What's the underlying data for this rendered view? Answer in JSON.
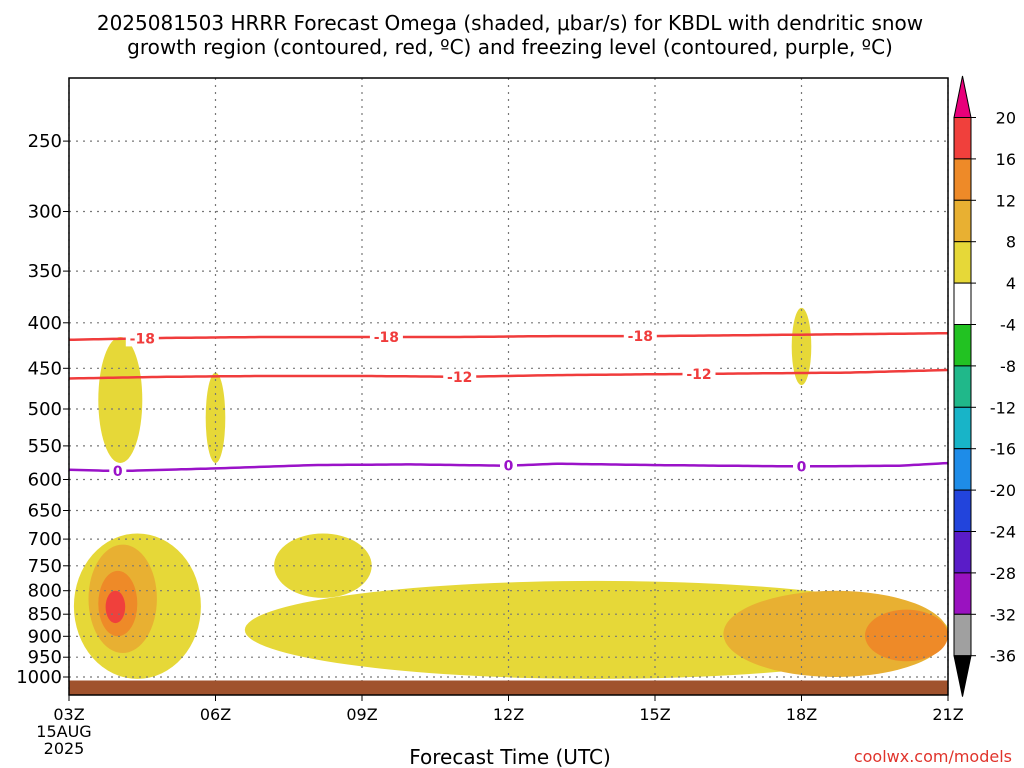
{
  "title_line1": "2025081503 HRRR Forecast Omega (shaded, μbar/s) for KBDL with dendritic snow",
  "title_line2": "growth region (contoured, red, ºC) and freezing level (contoured, purple, ºC)",
  "credit": "coolwx.com/models",
  "chart_data": {
    "type": "contour",
    "xlabel": "Forecast Time (UTC)",
    "ylabel": "",
    "x_ticks": [
      "03Z",
      "06Z",
      "09Z",
      "12Z",
      "15Z",
      "18Z",
      "21Z"
    ],
    "x_range_hours": [
      3,
      21
    ],
    "date_label": [
      "15AUG",
      "2025"
    ],
    "y_ticks": [
      250,
      300,
      350,
      400,
      450,
      500,
      550,
      600,
      650,
      700,
      750,
      800,
      850,
      900,
      950,
      1000
    ],
    "y_scale": "log-pressure",
    "grid": true,
    "colorbar": {
      "tick_labels": [
        "20",
        "16",
        "12",
        "8",
        "4",
        "-4",
        "-8",
        "-12",
        "-16",
        "-20",
        "-24",
        "-28",
        "-32",
        "-36"
      ],
      "bins": [
        {
          "color": "#e8007a",
          "range": "> 20"
        },
        {
          "color": "#f0403c",
          "range": "16 to 20"
        },
        {
          "color": "#ee8a28",
          "range": "12 to 16"
        },
        {
          "color": "#e8b032",
          "range": "8 to 12"
        },
        {
          "color": "#e6d838",
          "range": "4 to 8"
        },
        {
          "color": "#ffffff",
          "range": "-4 to 4"
        },
        {
          "color": "#22c222",
          "range": "-8 to -4"
        },
        {
          "color": "#20b88a",
          "range": "-12 to -8"
        },
        {
          "color": "#18b4c8",
          "range": "-16 to -12"
        },
        {
          "color": "#1e8ce8",
          "range": "-20 to -16"
        },
        {
          "color": "#2244dc",
          "range": "-24 to -20"
        },
        {
          "color": "#5a1cc8",
          "range": "-28 to -24"
        },
        {
          "color": "#9a12c0",
          "range": "-32 to -28"
        },
        {
          "color": "#a0a0a0",
          "range": "-36 to -32"
        },
        {
          "color": "#000000",
          "range": "< -36"
        }
      ]
    },
    "contours": [
      {
        "series": "dendritic growth",
        "label": "-18",
        "color": "#f03c3c",
        "hours": [
          3,
          5,
          7,
          9,
          11,
          13,
          15,
          17,
          19,
          21
        ],
        "pressure_hPa": [
          418,
          416,
          415,
          415,
          415,
          414,
          414,
          413,
          412,
          411
        ],
        "label_hours": [
          4.5,
          9.5,
          14.7
        ]
      },
      {
        "series": "dendritic growth",
        "label": "-12",
        "color": "#f03c3c",
        "hours": [
          3,
          5,
          7,
          9,
          11,
          13,
          15,
          17,
          19,
          21
        ],
        "pressure_hPa": [
          462,
          460,
          459,
          459,
          460,
          458,
          457,
          456,
          455,
          452
        ],
        "label_hours": [
          11.0,
          15.9
        ]
      },
      {
        "series": "freezing level",
        "label": "0",
        "color": "#9a12c8",
        "hours": [
          3,
          4,
          6,
          8,
          10,
          12,
          13,
          15,
          18,
          20,
          21
        ],
        "pressure_hPa": [
          585,
          587,
          583,
          578,
          577,
          579,
          576,
          578,
          580,
          579,
          575
        ],
        "label_hours": [
          4.0,
          12.0,
          18.0
        ]
      }
    ],
    "terrain": {
      "color": "#a0522d",
      "pressure_hPa": 1009
    },
    "shaded_regions": [
      {
        "color": "#e6d838",
        "hour_range": [
          3.6,
          4.5
        ],
        "pressure_range": [
          415,
          575
        ]
      },
      {
        "color": "#e6d838",
        "hour_range": [
          5.8,
          6.2
        ],
        "pressure_range": [
          455,
          575
        ]
      },
      {
        "color": "#e6d838",
        "hour_range": [
          17.8,
          18.2
        ],
        "pressure_range": [
          385,
          470
        ]
      },
      {
        "color": "#e6d838",
        "hour_range": [
          7.2,
          9.2
        ],
        "pressure_range": [
          690,
          815
        ]
      },
      {
        "color": "#e6d838",
        "hour_range": [
          3.1,
          5.7
        ],
        "pressure_range": [
          690,
          1005
        ]
      },
      {
        "color": "#e8b032",
        "hour_range": [
          3.4,
          4.8
        ],
        "pressure_range": [
          710,
          940
        ]
      },
      {
        "color": "#ee8a28",
        "hour_range": [
          3.6,
          4.4
        ],
        "pressure_range": [
          760,
          900
        ]
      },
      {
        "color": "#f0403c",
        "hour_range": [
          3.75,
          4.15
        ],
        "pressure_range": [
          800,
          870
        ]
      },
      {
        "color": "#e6d838",
        "hour_range": [
          6.6,
          21
        ],
        "pressure_range": [
          780,
          1005
        ]
      },
      {
        "color": "#e8b032",
        "hour_range": [
          16.4,
          21
        ],
        "pressure_range": [
          800,
          1000
        ]
      },
      {
        "color": "#ee8a28",
        "hour_range": [
          19.3,
          21
        ],
        "pressure_range": [
          840,
          960
        ]
      }
    ]
  }
}
